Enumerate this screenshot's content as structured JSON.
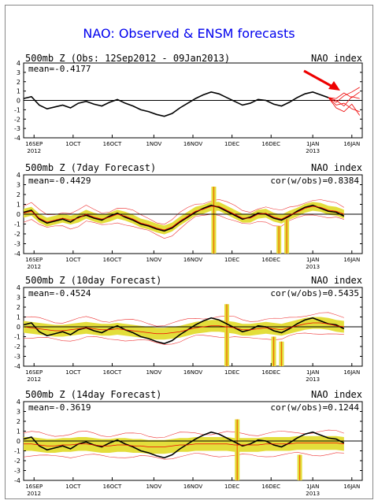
{
  "title": "NAO: Observed & ENSM forecasts",
  "colors": {
    "title": "#0000ee",
    "observed": "#000000",
    "ensemble": "#ee0000",
    "envelope": "#e3de3b",
    "spike": "#ee6600",
    "arrow": "#ee0000"
  },
  "x_ticks": [
    {
      "top": "16SEP",
      "bottom": "2012",
      "day": 4
    },
    {
      "top": "1OCT",
      "bottom": "",
      "day": 19
    },
    {
      "top": "16OCT",
      "bottom": "",
      "day": 34
    },
    {
      "top": "1NOV",
      "bottom": "",
      "day": 50
    },
    {
      "top": "16NOV",
      "bottom": "",
      "day": 65
    },
    {
      "top": "1DEC",
      "bottom": "",
      "day": 80
    },
    {
      "top": "16DEC",
      "bottom": "",
      "day": 95
    },
    {
      "top": "1JAN",
      "bottom": "2013",
      "day": 111
    },
    {
      "top": "16JAN",
      "bottom": "",
      "day": 126
    }
  ],
  "y_ticks": [
    "4",
    "3",
    "2",
    "1",
    "0",
    "-1",
    "-2",
    "-3",
    "-4"
  ],
  "chart_data": [
    {
      "type": "line",
      "title": "500mb Z (Obs: 12Sep2012 - 09Jan2013)",
      "label_right": "NAO index",
      "mean_label": "mean=-0.4177",
      "ylim": [
        -4,
        4
      ],
      "xlim_days": [
        0,
        130
      ],
      "series": [
        {
          "name": "Observed",
          "x": [
            0,
            3,
            6,
            9,
            12,
            15,
            18,
            21,
            24,
            27,
            30,
            33,
            36,
            39,
            42,
            45,
            48,
            51,
            54,
            57,
            60,
            63,
            66,
            69,
            72,
            75,
            78,
            81,
            84,
            87,
            90,
            93,
            96,
            99,
            102,
            105,
            108,
            111,
            114,
            117
          ],
          "values": [
            0.2,
            0.4,
            -0.5,
            -0.9,
            -0.7,
            -0.5,
            -0.8,
            -0.3,
            -0.1,
            -0.4,
            -0.6,
            -0.2,
            0.1,
            -0.3,
            -0.6,
            -1.0,
            -1.2,
            -1.5,
            -1.7,
            -1.4,
            -0.8,
            -0.3,
            0.2,
            0.6,
            0.9,
            0.7,
            0.3,
            -0.1,
            -0.5,
            -0.3,
            0.1,
            0.0,
            -0.4,
            -0.6,
            -0.2,
            0.3,
            0.7,
            0.9,
            0.6,
            0.3
          ]
        },
        {
          "name": "",
          "x": [
            117,
            120,
            123,
            126,
            129
          ],
          "values": [
            0.3,
            -0.5,
            -0.3,
            -0.9,
            -1.2
          ]
        },
        {
          "name": "",
          "x": [
            117,
            120,
            123,
            126,
            129
          ],
          "values": [
            0.3,
            0.2,
            0.8,
            0.3,
            0.9
          ]
        },
        {
          "name": "",
          "x": [
            117,
            120,
            123,
            126,
            129
          ],
          "values": [
            0.3,
            -0.2,
            0.5,
            0.9,
            1.4
          ]
        },
        {
          "name": "",
          "x": [
            117,
            120,
            123,
            126,
            129
          ],
          "values": [
            0.3,
            -0.8,
            -1.2,
            -0.4,
            -1.6
          ]
        },
        {
          "name": "",
          "x": [
            117,
            120,
            123,
            126,
            129
          ],
          "values": [
            0.3,
            0.0,
            -0.6,
            0.4,
            0.2
          ]
        }
      ]
    },
    {
      "type": "line",
      "title": "500mb Z (7day Forecast)",
      "label_right": "NAO index",
      "mean_label": "mean=-0.4429",
      "corr_label": "cor(w/obs)=0.8384",
      "ylim": [
        -4,
        4
      ],
      "xlim_days": [
        0,
        130
      ],
      "series": [
        {
          "name": "Observed",
          "x": [
            0,
            3,
            6,
            9,
            12,
            15,
            18,
            21,
            24,
            27,
            30,
            33,
            36,
            39,
            42,
            45,
            48,
            51,
            54,
            57,
            60,
            63,
            66,
            69,
            72,
            75,
            78,
            81,
            84,
            87,
            90,
            93,
            96,
            99,
            102,
            105,
            108,
            111,
            114,
            117,
            120,
            123
          ],
          "values": [
            0.2,
            0.4,
            -0.5,
            -0.9,
            -0.7,
            -0.5,
            -0.8,
            -0.3,
            -0.1,
            -0.4,
            -0.6,
            -0.2,
            0.1,
            -0.3,
            -0.6,
            -1.0,
            -1.2,
            -1.5,
            -1.7,
            -1.4,
            -0.8,
            -0.3,
            0.2,
            0.6,
            0.9,
            0.7,
            0.3,
            -0.1,
            -0.5,
            -0.3,
            0.1,
            0.0,
            -0.4,
            -0.6,
            -0.2,
            0.3,
            0.7,
            0.9,
            0.6,
            0.3,
            0.2,
            -0.2
          ]
        },
        {
          "name": "Ensemble mean",
          "x": [
            0,
            3,
            6,
            9,
            12,
            15,
            18,
            21,
            24,
            27,
            30,
            33,
            36,
            39,
            42,
            45,
            48,
            51,
            54,
            57,
            60,
            63,
            66,
            69,
            72,
            75,
            78,
            81,
            84,
            87,
            90,
            93,
            96,
            99,
            102,
            105,
            108,
            111,
            114,
            117,
            120,
            123
          ],
          "values": [
            0.1,
            0.3,
            -0.4,
            -0.8,
            -0.6,
            -0.4,
            -0.6,
            -0.4,
            0.0,
            -0.3,
            -0.5,
            -0.3,
            0.0,
            -0.2,
            -0.5,
            -0.9,
            -1.1,
            -1.4,
            -1.6,
            -1.3,
            -0.7,
            -0.2,
            0.3,
            0.5,
            0.8,
            0.8,
            0.4,
            0.0,
            -0.4,
            -0.4,
            0.0,
            0.1,
            -0.3,
            -0.5,
            -0.1,
            0.2,
            0.6,
            0.8,
            0.7,
            0.4,
            0.3,
            0.0
          ]
        }
      ],
      "envelope_halfwidth": 0.45,
      "spikes": [
        {
          "day": 73,
          "top": 2.8,
          "bottom": -4
        },
        {
          "day": 98,
          "top": -1.2,
          "bottom": -4
        },
        {
          "day": 101,
          "top": -0.5,
          "bottom": -4
        }
      ]
    },
    {
      "type": "line",
      "title": "500mb Z (10day Forecast)",
      "label_right": "NAO index",
      "mean_label": "mean=-0.4524",
      "corr_label": "cor(w/obs)=0.5435",
      "ylim": [
        -4,
        4
      ],
      "xlim_days": [
        0,
        130
      ],
      "series": [
        {
          "name": "Observed",
          "x": [
            0,
            3,
            6,
            9,
            12,
            15,
            18,
            21,
            24,
            27,
            30,
            33,
            36,
            39,
            42,
            45,
            48,
            51,
            54,
            57,
            60,
            63,
            66,
            69,
            72,
            75,
            78,
            81,
            84,
            87,
            90,
            93,
            96,
            99,
            102,
            105,
            108,
            111,
            114,
            117,
            120,
            123
          ],
          "values": [
            0.2,
            0.4,
            -0.5,
            -0.9,
            -0.7,
            -0.5,
            -0.8,
            -0.3,
            -0.1,
            -0.4,
            -0.6,
            -0.2,
            0.1,
            -0.3,
            -0.6,
            -1.0,
            -1.2,
            -1.5,
            -1.7,
            -1.4,
            -0.8,
            -0.3,
            0.2,
            0.6,
            0.9,
            0.7,
            0.3,
            -0.1,
            -0.5,
            -0.3,
            0.1,
            0.0,
            -0.4,
            -0.6,
            -0.2,
            0.3,
            0.7,
            0.9,
            0.6,
            0.3,
            0.2,
            -0.2
          ]
        },
        {
          "name": "Ensemble mean",
          "x": [
            0,
            3,
            6,
            9,
            12,
            15,
            18,
            21,
            24,
            27,
            30,
            33,
            36,
            39,
            42,
            45,
            48,
            51,
            54,
            57,
            60,
            63,
            66,
            69,
            72,
            75,
            78,
            81,
            84,
            87,
            90,
            93,
            96,
            99,
            102,
            105,
            108,
            111,
            114,
            117,
            120,
            123
          ],
          "values": [
            0.0,
            -0.1,
            -0.2,
            -0.3,
            -0.4,
            -0.4,
            -0.3,
            -0.2,
            -0.1,
            -0.2,
            -0.3,
            -0.3,
            -0.2,
            -0.3,
            -0.4,
            -0.5,
            -0.6,
            -0.7,
            -0.7,
            -0.6,
            -0.5,
            -0.3,
            -0.1,
            0.0,
            0.1,
            0.1,
            0.0,
            -0.1,
            -0.3,
            -0.3,
            -0.2,
            -0.1,
            -0.2,
            -0.3,
            -0.1,
            0.1,
            0.3,
            0.4,
            0.4,
            0.3,
            0.1,
            0.0
          ]
        }
      ],
      "envelope_halfwidth": 0.6,
      "spikes": [
        {
          "day": 78,
          "top": 2.3,
          "bottom": -4
        },
        {
          "day": 96,
          "top": -1.0,
          "bottom": -4
        },
        {
          "day": 99,
          "top": -1.5,
          "bottom": -4
        }
      ]
    },
    {
      "type": "line",
      "title": "500mb Z (14day Forecast)",
      "label_right": "NAO index",
      "mean_label": "mean=-0.3619",
      "corr_label": "cor(w/obs)=0.1244",
      "ylim": [
        -4,
        4
      ],
      "xlim_days": [
        0,
        130
      ],
      "series": [
        {
          "name": "Observed",
          "x": [
            0,
            3,
            6,
            9,
            12,
            15,
            18,
            21,
            24,
            27,
            30,
            33,
            36,
            39,
            42,
            45,
            48,
            51,
            54,
            57,
            60,
            63,
            66,
            69,
            72,
            75,
            78,
            81,
            84,
            87,
            90,
            93,
            96,
            99,
            102,
            105,
            108,
            111,
            114,
            117,
            120,
            123
          ],
          "values": [
            0.2,
            0.4,
            -0.5,
            -0.9,
            -0.7,
            -0.5,
            -0.8,
            -0.3,
            -0.1,
            -0.4,
            -0.6,
            -0.2,
            0.1,
            -0.3,
            -0.6,
            -1.0,
            -1.2,
            -1.5,
            -1.7,
            -1.4,
            -0.8,
            -0.3,
            0.2,
            0.6,
            0.9,
            0.7,
            0.3,
            -0.1,
            -0.5,
            -0.3,
            0.1,
            0.0,
            -0.4,
            -0.6,
            -0.2,
            0.3,
            0.7,
            0.9,
            0.6,
            0.3,
            0.2,
            -0.2
          ]
        },
        {
          "name": "Ensemble mean",
          "x": [
            0,
            3,
            6,
            9,
            12,
            15,
            18,
            21,
            24,
            27,
            30,
            33,
            36,
            39,
            42,
            45,
            48,
            51,
            54,
            57,
            60,
            63,
            66,
            69,
            72,
            75,
            78,
            81,
            84,
            87,
            90,
            93,
            96,
            99,
            102,
            105,
            108,
            111,
            114,
            117,
            120,
            123
          ],
          "values": [
            -0.3,
            -0.3,
            -0.4,
            -0.5,
            -0.5,
            -0.4,
            -0.4,
            -0.3,
            -0.3,
            -0.4,
            -0.5,
            -0.5,
            -0.4,
            -0.4,
            -0.5,
            -0.5,
            -0.6,
            -0.6,
            -0.6,
            -0.5,
            -0.4,
            -0.4,
            -0.3,
            -0.3,
            -0.3,
            -0.3,
            -0.3,
            -0.4,
            -0.4,
            -0.4,
            -0.4,
            -0.3,
            -0.3,
            -0.3,
            -0.3,
            -0.2,
            -0.2,
            -0.2,
            -0.2,
            -0.2,
            -0.2,
            -0.3
          ]
        }
      ],
      "envelope_halfwidth": 0.7,
      "spikes": [
        {
          "day": 82,
          "top": 2.2,
          "bottom": -4
        },
        {
          "day": 106,
          "top": -1.4,
          "bottom": -4
        }
      ]
    }
  ]
}
